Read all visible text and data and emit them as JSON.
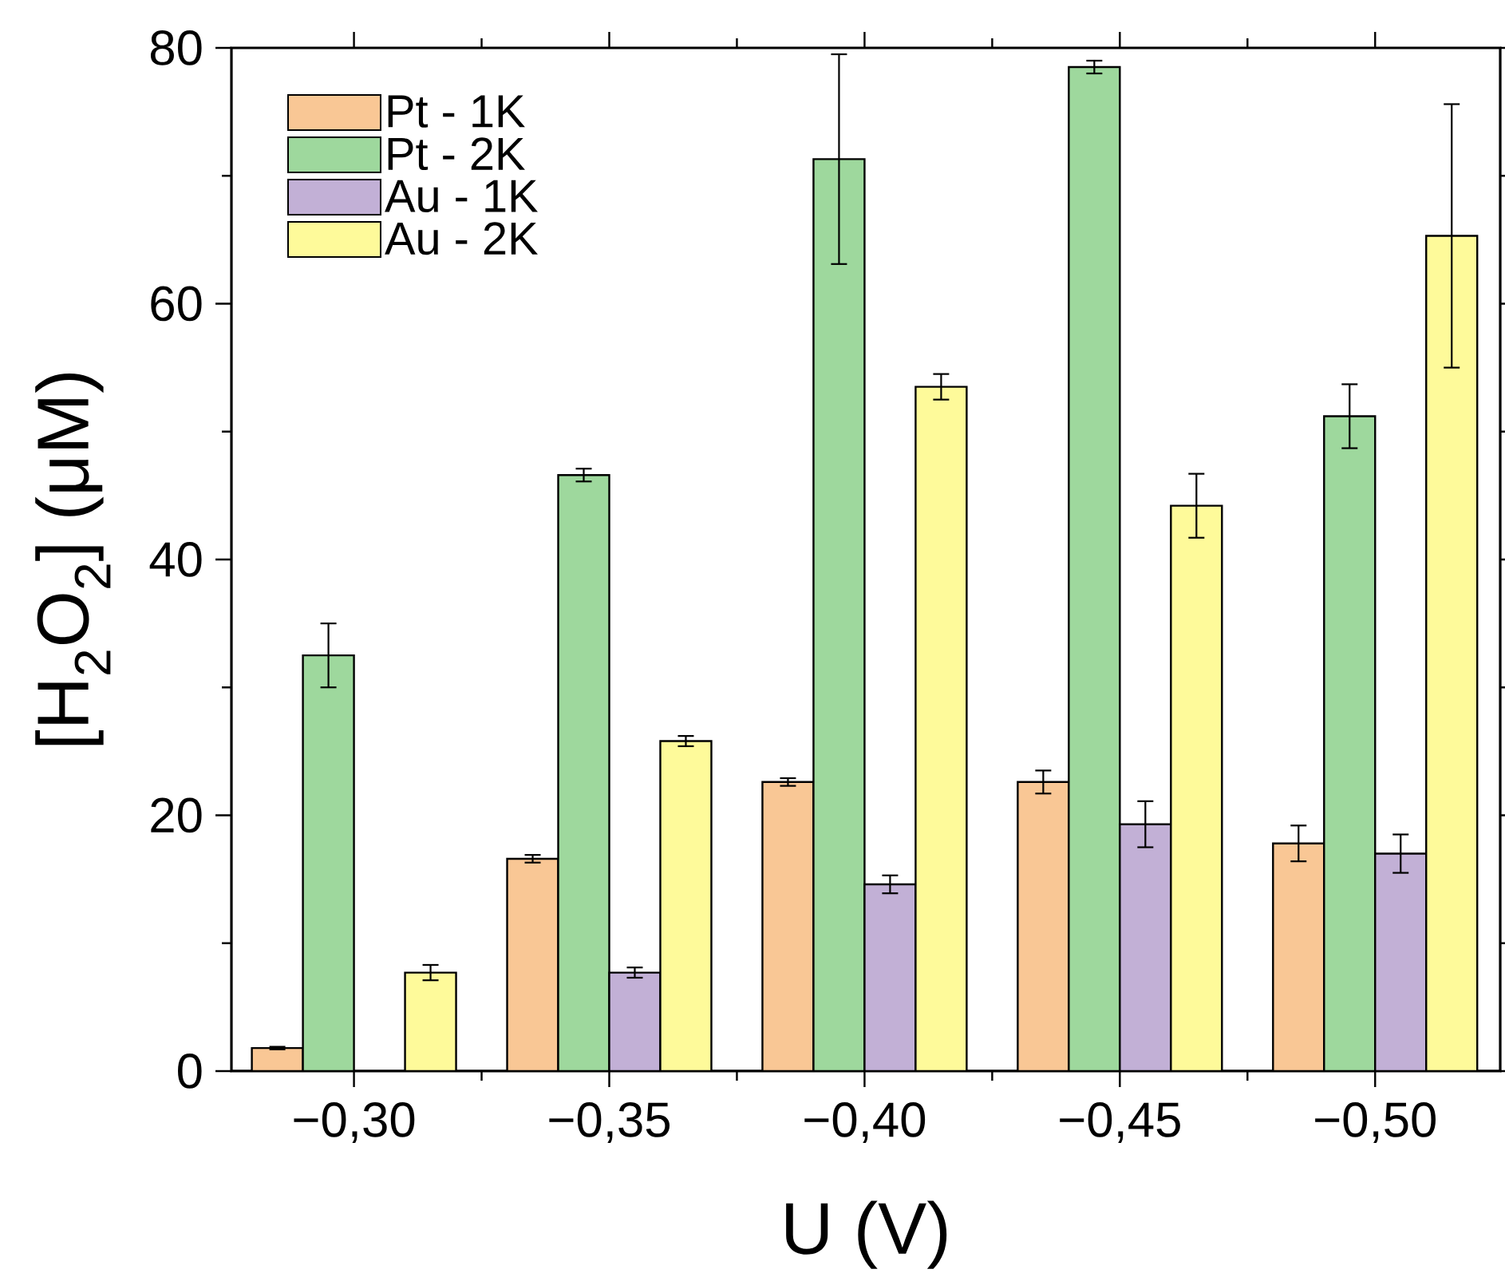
{
  "chart_data": {
    "type": "bar",
    "xlabel": "U (V)",
    "ylabel": "[H$_{2}$O$_{2}$] (μM)",
    "categories": [
      "−0,30",
      "−0,35",
      "−0,40",
      "−0,45",
      "−0,50"
    ],
    "ylim": [
      0,
      80
    ],
    "yticks": [
      0,
      20,
      40,
      60,
      80
    ],
    "legend": "top left",
    "grid": false,
    "series": [
      {
        "name": "Pt - 1K",
        "color": "#f9c795",
        "values": [
          1.8,
          16.6,
          22.6,
          22.6,
          17.8
        ],
        "errors": [
          0.1,
          0.3,
          0.3,
          0.9,
          1.4
        ]
      },
      {
        "name": "Pt - 2K",
        "color": "#9ed89d",
        "values": [
          32.5,
          46.6,
          71.3,
          78.5,
          51.2
        ],
        "errors": [
          2.5,
          0.5,
          8.2,
          0.5,
          2.5
        ]
      },
      {
        "name": "Au - 1K",
        "color": "#c2b0d6",
        "values": [
          null,
          7.7,
          14.6,
          19.3,
          17.0
        ],
        "errors": [
          null,
          0.4,
          0.7,
          1.8,
          1.5
        ]
      },
      {
        "name": "Au - 2K",
        "color": "#fefa9a",
        "values": [
          7.7,
          25.8,
          53.5,
          44.2,
          65.3
        ],
        "errors": [
          0.6,
          0.4,
          1.0,
          2.5,
          10.3
        ]
      }
    ]
  }
}
